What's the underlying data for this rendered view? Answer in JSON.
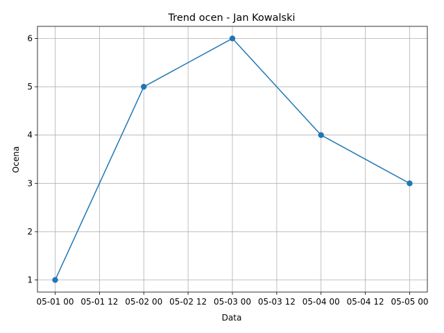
{
  "chart_data": {
    "type": "line",
    "title": "Trend ocen - Jan Kowalski",
    "xlabel": "Data",
    "ylabel": "Ocena",
    "x": [
      "05-01 00",
      "05-02 00",
      "05-03 00",
      "05-04 00",
      "05-05 00"
    ],
    "y": [
      1,
      5,
      6,
      4,
      3
    ],
    "x_tick_labels": [
      "05-01 00",
      "05-01 12",
      "05-02 00",
      "05-02 12",
      "05-03 00",
      "05-03 12",
      "05-04 00",
      "05-04 12",
      "05-05 00"
    ],
    "y_tick_labels": [
      "1",
      "2",
      "3",
      "4",
      "5",
      "6"
    ],
    "xlim": [
      "05-01 00",
      "05-05 00"
    ],
    "ylim": [
      0.75,
      6.25
    ],
    "grid": true,
    "line_color": "#1f77b4",
    "marker": "circle"
  }
}
